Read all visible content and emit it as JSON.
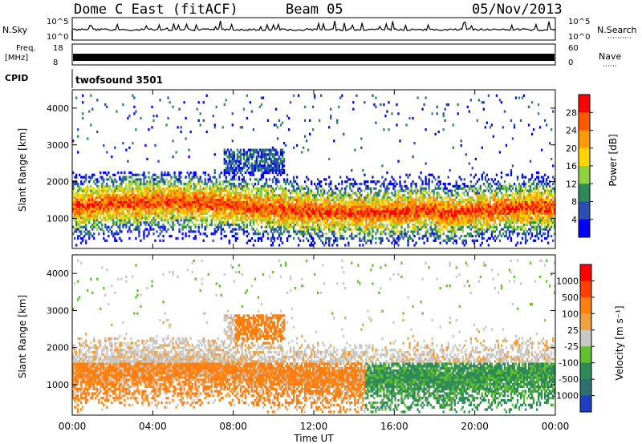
{
  "header": {
    "station": "Dome C East (fitACF)",
    "beam": "Beam 05",
    "date": "05/Nov/2013"
  },
  "top_panels": {
    "nsky_label": "N.Sky",
    "nsky_ticks": [
      "10^5",
      "10^0"
    ],
    "nsearch_label": "N.Search",
    "nsearch_ticks": [
      "10^5",
      "10^0"
    ],
    "freq_label": "Freq.",
    "freq_unit": "[MHz]",
    "freq_ticks": [
      "18",
      "8"
    ],
    "nave_label": "Nave",
    "nave_ticks": [
      "60",
      "0"
    ],
    "cpid_label": "CPID",
    "cpid_value": "twofsound 3501"
  },
  "chart_data": [
    {
      "type": "heatmap",
      "name": "power",
      "ylabel": "Slant Range [km]",
      "xlabel": "",
      "x_ticks": [
        "00:00",
        "04:00",
        "08:00",
        "12:00",
        "16:00",
        "20:00",
        "00:00"
      ],
      "xlim": [
        0,
        24
      ],
      "ylim": [
        180,
        4500
      ],
      "y_ticks": [
        1000,
        2000,
        3000,
        4000
      ],
      "colorbar": {
        "label": "Power [dB]",
        "ticks": [
          "4",
          "8",
          "12",
          "16",
          "20",
          "24",
          "28"
        ],
        "colors": [
          "#0000ff",
          "#2a4fb0",
          "#2e8b57",
          "#8fd13f",
          "#ffd400",
          "#ff9a00",
          "#ff5a00",
          "#ff0000"
        ]
      }
    },
    {
      "type": "heatmap",
      "name": "velocity",
      "ylabel": "Slant Range [km]",
      "xlabel": "Time UT",
      "x_ticks": [
        "00:00",
        "04:00",
        "08:00",
        "12:00",
        "16:00",
        "20:00",
        "00:00"
      ],
      "xlim": [
        0,
        24
      ],
      "ylim": [
        180,
        4500
      ],
      "y_ticks": [
        1000,
        2000,
        3000,
        4000
      ],
      "colorbar": {
        "label": "Velocity [m s⁻¹]",
        "ticks": [
          "1000",
          "500",
          "100",
          "25",
          "-25",
          "-100",
          "-500",
          "-1000"
        ],
        "colors": [
          "#1e3fbf",
          "#2e6f6f",
          "#2e8b57",
          "#60c030",
          "#c8c8c8",
          "#f0a040",
          "#ff7f10",
          "#ff4000",
          "#ff0000"
        ]
      }
    }
  ]
}
